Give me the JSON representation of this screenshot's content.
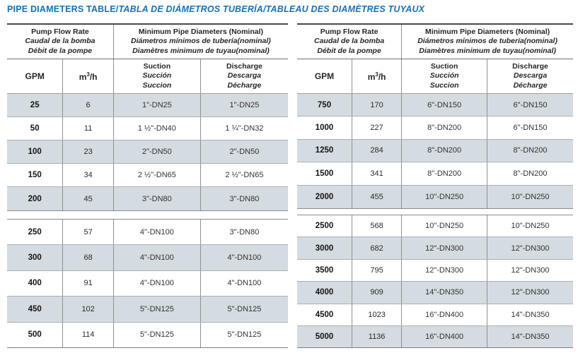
{
  "title": {
    "main": "PIPE DIAMETERS TABLE/",
    "italic": "TABLA DE DIÁMETROS TUBERÍA/TABLEAU DES DIAMÈTRES TUYAUX"
  },
  "colors": {
    "accent_blue": "#1471b8",
    "row_shade": "#d4dbe1"
  },
  "header": {
    "flow": [
      "Pump Flow Rate",
      "Caudal de la bomba",
      "Débit de la pompe"
    ],
    "diameters": [
      "Minimum Pipe Diameters (Nominal)",
      "Diámetros mínimos de tubería(nominal)",
      "Diamètres minimum de tuyau(nominal)"
    ],
    "gpm": "GPM",
    "m3h": {
      "base": "m",
      "sup": "3",
      "rest": "/h"
    },
    "suction": [
      "Suction",
      "Succión",
      "Succion"
    ],
    "discharge": [
      "Discharge",
      "Descarga",
      "Décharge"
    ]
  },
  "tables": [
    {
      "blocks": [
        [
          {
            "gpm": "25",
            "m3h": "6",
            "suction": "1\"-DN25",
            "discharge": "1\"-DN25",
            "shaded": true
          },
          {
            "gpm": "50",
            "m3h": "11",
            "suction": "1 ½\"-DN40",
            "discharge": "1 ¼\"-DN32",
            "shaded": false
          },
          {
            "gpm": "100",
            "m3h": "23",
            "suction": "2\"-DN50",
            "discharge": "2\"-DN50",
            "shaded": true
          },
          {
            "gpm": "150",
            "m3h": "34",
            "suction": "2 ½\"-DN65",
            "discharge": "2 ½\"-DN65",
            "shaded": false
          },
          {
            "gpm": "200",
            "m3h": "45",
            "suction": "3\"-DN80",
            "discharge": "3\"-DN80",
            "shaded": true
          }
        ],
        [
          {
            "gpm": "250",
            "m3h": "57",
            "suction": "4\"-DN100",
            "discharge": "3\"-DN80",
            "shaded": false
          },
          {
            "gpm": "300",
            "m3h": "68",
            "suction": "4\"-DN100",
            "discharge": "4\"-DN100",
            "shaded": true
          },
          {
            "gpm": "400",
            "m3h": "91",
            "suction": "4\"-DN100",
            "discharge": "4\"-DN100",
            "shaded": false
          },
          {
            "gpm": "450",
            "m3h": "102",
            "suction": "5\"-DN125",
            "discharge": "5\"-DN125",
            "shaded": true
          },
          {
            "gpm": "500",
            "m3h": "114",
            "suction": "5\"-DN125",
            "discharge": "5\"-DN125",
            "shaded": false
          }
        ]
      ]
    },
    {
      "blocks": [
        [
          {
            "gpm": "750",
            "m3h": "170",
            "suction": "6\"-DN150",
            "discharge": "6\"-DN150",
            "shaded": true
          },
          {
            "gpm": "1000",
            "m3h": "227",
            "suction": "8\"-DN200",
            "discharge": "6\"-DN150",
            "shaded": false
          },
          {
            "gpm": "1250",
            "m3h": "284",
            "suction": "8\"-DN200",
            "discharge": "8\"-DN200",
            "shaded": true
          },
          {
            "gpm": "1500",
            "m3h": "341",
            "suction": "8\"-DN200",
            "discharge": "8\"-DN200",
            "shaded": false
          },
          {
            "gpm": "2000",
            "m3h": "455",
            "suction": "10\"-DN250",
            "discharge": "10\"-DN250",
            "shaded": true
          }
        ],
        [
          {
            "gpm": "2500",
            "m3h": "568",
            "suction": "10\"-DN250",
            "discharge": "10\"-DN250",
            "shaded": false
          },
          {
            "gpm": "3000",
            "m3h": "682",
            "suction": "12\"-DN300",
            "discharge": "12\"-DN300",
            "shaded": true
          },
          {
            "gpm": "3500",
            "m3h": "795",
            "suction": "12\"-DN300",
            "discharge": "12\"-DN300",
            "shaded": false
          },
          {
            "gpm": "4000",
            "m3h": "909",
            "suction": "14\"-DN350",
            "discharge": "12\"-DN300",
            "shaded": true
          },
          {
            "gpm": "4500",
            "m3h": "1023",
            "suction": "16\"-DN400",
            "discharge": "14\"-DN350",
            "shaded": false
          },
          {
            "gpm": "5000",
            "m3h": "1136",
            "suction": "16\"-DN400",
            "discharge": "14\"-DN350",
            "shaded": true
          }
        ]
      ]
    }
  ]
}
